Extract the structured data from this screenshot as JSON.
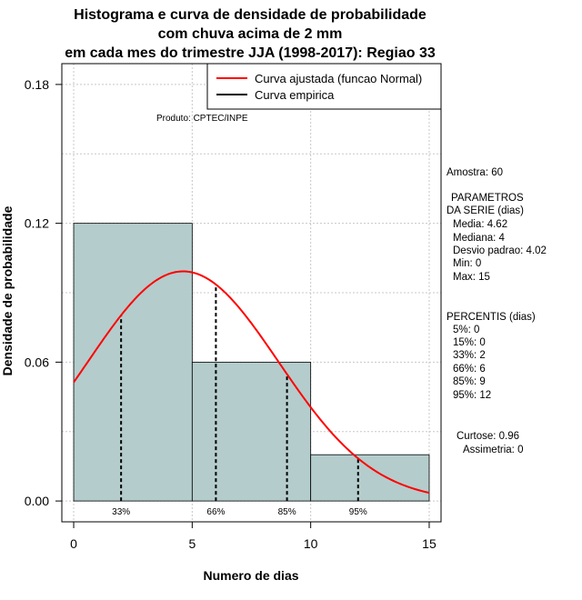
{
  "chart_data": {
    "type": "bar",
    "title_lines": [
      "Histograma e curva de densidade de probabilidade",
      "com chuva acima de 2 mm",
      "em cada mes do trimestre JJA (1998-2017): Regiao 33"
    ],
    "xlabel": "Numero de dias",
    "ylabel": "Densidade de probabilidade",
    "xlim": [
      -0.5,
      15.5
    ],
    "ylim": [
      -0.009,
      0.189
    ],
    "x_ticks": [
      0,
      5,
      10,
      15
    ],
    "x_tick_labels": [
      "0",
      "5",
      "10",
      "15"
    ],
    "y_ticks": [
      0.0,
      0.06,
      0.12,
      0.18
    ],
    "y_tick_labels": [
      "0.00",
      "0.06",
      "0.12",
      "0.18"
    ],
    "grid": true,
    "bins": [
      {
        "start": 0,
        "end": 5,
        "density": 0.12
      },
      {
        "start": 5,
        "end": 10,
        "density": 0.06
      },
      {
        "start": 10,
        "end": 15,
        "density": 0.02
      }
    ],
    "fitted_curve": {
      "distribution": "normal",
      "mean": 4.62,
      "sd": 4.02,
      "color": "#ff0000"
    },
    "percentile_markers": [
      {
        "label": "33%",
        "x": 2
      },
      {
        "label": "66%",
        "x": 6
      },
      {
        "label": "85%",
        "x": 9
      },
      {
        "label": "95%",
        "x": 12
      }
    ],
    "legend": {
      "position": "top-right",
      "entries": [
        {
          "label": "Curva ajustada (funcao Normal)",
          "color": "#ff0000"
        },
        {
          "label": "Curva empirica",
          "color": "#000000"
        }
      ]
    },
    "annotation": "Produto: CPTEC/INPE",
    "bar_color": "#b4cccc"
  },
  "side_panel": {
    "sample": "Amostra: 60",
    "params_title_1": "PARAMETROS",
    "params_title_2": "DA SERIE (dias)",
    "params": [
      "Media: 4.62",
      "Mediana: 4",
      "Desvio padrao: 4.02",
      "Min: 0",
      "Max: 15"
    ],
    "percentis_title": "PERCENTIS (dias)",
    "percentis": [
      "5%: 0",
      "15%: 0",
      "33%: 2",
      "66%: 6",
      "85%: 9",
      "95%: 12"
    ],
    "curtose": "Curtose: 0.96",
    "assimetria": "Assimetria: 0"
  }
}
